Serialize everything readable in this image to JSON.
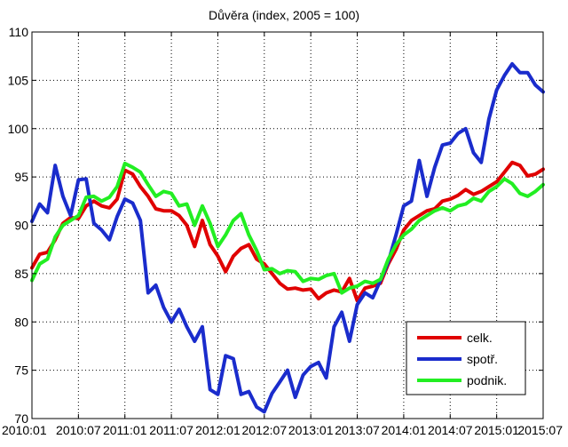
{
  "chart_data": {
    "type": "line",
    "title": "Důvěra (index, 2005 = 100)",
    "xlabel": "",
    "ylabel": "",
    "ylim": [
      70,
      110
    ],
    "yticks": [
      70,
      75,
      80,
      85,
      90,
      95,
      100,
      105,
      110
    ],
    "grid": true,
    "legend_position": "bottom-right",
    "x_tick_labels": [
      "2010:01",
      "2010:07",
      "2011:01",
      "2011:07",
      "2012:01",
      "2012:07",
      "2013:01",
      "2013:07",
      "2014:01",
      "2014:07",
      "2015:01",
      "2015:07"
    ],
    "x": [
      "2010:01",
      "2010:02",
      "2010:03",
      "2010:04",
      "2010:05",
      "2010:06",
      "2010:07",
      "2010:08",
      "2010:09",
      "2010:10",
      "2010:11",
      "2010:12",
      "2011:01",
      "2011:02",
      "2011:03",
      "2011:04",
      "2011:05",
      "2011:06",
      "2011:07",
      "2011:08",
      "2011:09",
      "2011:10",
      "2011:11",
      "2011:12",
      "2012:01",
      "2012:02",
      "2012:03",
      "2012:04",
      "2012:05",
      "2012:06",
      "2012:07",
      "2012:08",
      "2012:09",
      "2012:10",
      "2012:11",
      "2012:12",
      "2013:01",
      "2013:02",
      "2013:03",
      "2013:04",
      "2013:05",
      "2013:06",
      "2013:07",
      "2013:08",
      "2013:09",
      "2013:10",
      "2013:11",
      "2013:12",
      "2014:01",
      "2014:02",
      "2014:03",
      "2014:04",
      "2014:05",
      "2014:06",
      "2014:07",
      "2014:08",
      "2014:09",
      "2014:10",
      "2014:11",
      "2014:12",
      "2015:01",
      "2015:02",
      "2015:03",
      "2015:04",
      "2015:05",
      "2015:06",
      "2015:07"
    ],
    "series": [
      {
        "name": "celk.",
        "color": "#e00000",
        "values": [
          85.6,
          87.0,
          87.2,
          88.5,
          90.2,
          90.8,
          90.7,
          92.0,
          92.5,
          92.0,
          91.8,
          92.7,
          95.7,
          95.3,
          94.0,
          93.0,
          91.7,
          91.5,
          91.5,
          91.0,
          90.0,
          87.8,
          90.5,
          88.0,
          86.8,
          85.2,
          86.8,
          87.6,
          88.0,
          86.5,
          86.0,
          85.0,
          84.0,
          83.4,
          83.5,
          83.3,
          83.4,
          82.4,
          83.0,
          83.3,
          83.1,
          84.5,
          82.2,
          83.5,
          83.7,
          84.0,
          86.0,
          87.5,
          89.5,
          90.5,
          91.0,
          91.5,
          91.7,
          92.5,
          92.7,
          93.1,
          93.7,
          93.2,
          93.5,
          94.0,
          94.5,
          95.5,
          96.5,
          96.2,
          95.1,
          95.3,
          95.8
        ]
      },
      {
        "name": "spotř.",
        "color": "#1a2ccc",
        "values": [
          90.4,
          92.2,
          91.3,
          96.2,
          93.0,
          91.0,
          94.7,
          94.8,
          90.2,
          89.5,
          88.5,
          90.9,
          92.7,
          92.3,
          90.5,
          83.0,
          83.8,
          81.5,
          80.0,
          81.3,
          79.5,
          78.0,
          79.5,
          73.0,
          72.5,
          76.5,
          76.2,
          72.5,
          72.8,
          71.2,
          70.7,
          72.6,
          73.8,
          75.0,
          72.2,
          74.5,
          75.4,
          75.8,
          74.2,
          79.5,
          81.0,
          78.0,
          81.8,
          83.0,
          82.5,
          84.3,
          86.2,
          89.0,
          92.0,
          92.5,
          96.7,
          93.0,
          96.0,
          98.3,
          98.5,
          99.5,
          100.0,
          97.5,
          96.5,
          101.0,
          104.0,
          105.5,
          106.7,
          105.8,
          105.8,
          104.5,
          103.8
        ]
      },
      {
        "name": "podnik.",
        "color": "#22ee22",
        "values": [
          84.3,
          86.0,
          86.5,
          88.8,
          90.0,
          90.5,
          91.0,
          92.9,
          93.0,
          92.5,
          92.9,
          94.0,
          96.4,
          96.0,
          95.5,
          94.2,
          93.0,
          93.5,
          93.3,
          92.0,
          92.2,
          90.0,
          92.0,
          90.2,
          87.8,
          89.0,
          90.5,
          91.2,
          89.0,
          87.4,
          85.4,
          85.5,
          85.0,
          85.3,
          85.2,
          84.2,
          84.5,
          84.4,
          84.8,
          85.0,
          83.0,
          83.5,
          83.7,
          84.2,
          84.0,
          84.4,
          86.5,
          88.0,
          89.0,
          89.6,
          90.5,
          91.0,
          91.5,
          91.8,
          91.5,
          92.0,
          92.2,
          92.8,
          92.5,
          93.5,
          94.0,
          94.8,
          94.3,
          93.3,
          93.0,
          93.5,
          94.2
        ]
      }
    ]
  }
}
